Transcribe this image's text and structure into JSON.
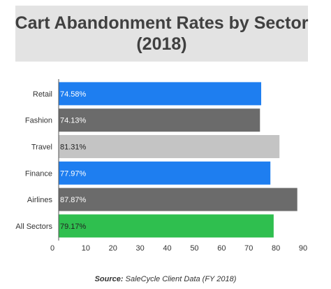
{
  "chart_data": {
    "type": "bar",
    "orientation": "horizontal",
    "title_line1": "Cart Abandonment Rates by Sector",
    "title_line2": "(2018)",
    "categories": [
      "Retail",
      "Fashion",
      "Travel",
      "Finance",
      "Airlines",
      "All Sectors"
    ],
    "values": [
      74.58,
      74.13,
      81.31,
      77.97,
      87.87,
      79.17
    ],
    "value_labels": [
      "74.58%",
      "74.13%",
      "81.31%",
      "77.97%",
      "87.87%",
      "79.17%"
    ],
    "colors": [
      "#1e7ef0",
      "#6b6b6b",
      "#c4c4c4",
      "#1e7ef0",
      "#6b6b6b",
      "#2fbf4f"
    ],
    "label_colors": [
      "#ffffff",
      "#ffffff",
      "#222222",
      "#ffffff",
      "#ffffff",
      "#222222"
    ],
    "xlim": [
      0,
      90
    ],
    "xticks": [
      "0",
      "10",
      "20",
      "30",
      "40",
      "50",
      "60",
      "70",
      "80",
      "90"
    ],
    "grid": false,
    "legend": "none"
  },
  "source": {
    "label": "Source:",
    "text": "SaleCycle Client Data (FY 2018)"
  }
}
